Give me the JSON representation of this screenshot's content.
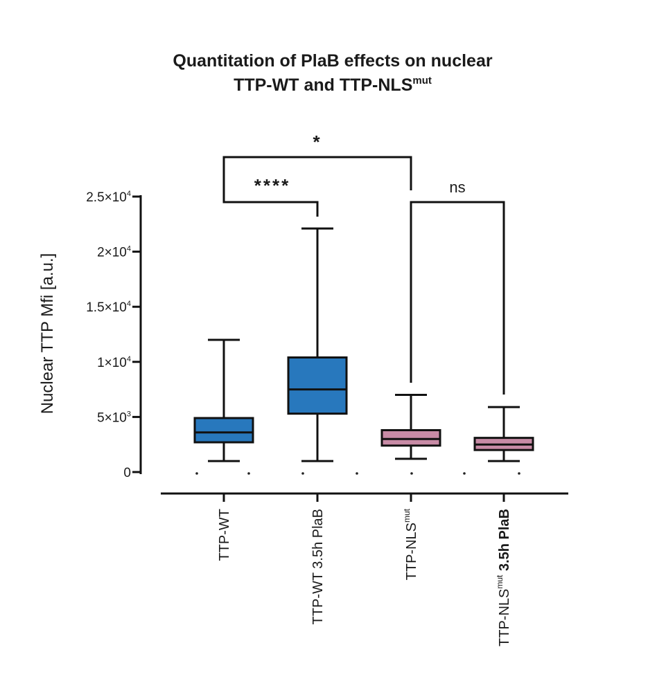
{
  "chart_data": {
    "type": "box",
    "title": {
      "line1": "Quantitation of PlaB effects on nuclear",
      "line2_prefix": "TTP-WT and TTP-NLS",
      "line2_sup": "mut"
    },
    "ylabel": "Nuclear TTP Mfi [a.u.]",
    "ylim": [
      0,
      25000
    ],
    "yticks": [
      {
        "value": 0,
        "base": "0",
        "exp": ""
      },
      {
        "value": 5000,
        "base": "5×10",
        "exp": "3"
      },
      {
        "value": 10000,
        "base": "1×10",
        "exp": "4"
      },
      {
        "value": 15000,
        "base": "1.5×10",
        "exp": "4"
      },
      {
        "value": 20000,
        "base": "2×10",
        "exp": "4"
      },
      {
        "value": 25000,
        "base": "2.5×10",
        "exp": "4"
      }
    ],
    "categories": [
      {
        "prefix": "TTP-WT",
        "sup": "",
        "suffix": "",
        "bold_suffix": false,
        "color": "#2878bd"
      },
      {
        "prefix": "TTP-WT 3.5h PlaB",
        "sup": "",
        "suffix": "",
        "bold_suffix": false,
        "color": "#2878bd"
      },
      {
        "prefix": "TTP-NLS",
        "sup": "mut",
        "suffix": "",
        "bold_suffix": false,
        "color": "#c88ba6"
      },
      {
        "prefix": "TTP-NLS",
        "sup": "mut",
        "suffix": " 3.5h PlaB",
        "bold_suffix": true,
        "color": "#c88ba6"
      }
    ],
    "boxes": [
      {
        "min": 1000,
        "q1": 2700,
        "median": 3600,
        "q3": 4900,
        "max": 12000
      },
      {
        "min": 1000,
        "q1": 5300,
        "median": 7500,
        "q3": 10400,
        "max": 22100
      },
      {
        "min": 1200,
        "q1": 2400,
        "median": 3000,
        "q3": 3800,
        "max": 7000
      },
      {
        "min": 1000,
        "q1": 2000,
        "median": 2500,
        "q3": 3100,
        "max": 5900
      }
    ],
    "significance": [
      {
        "from": 0,
        "to": 1,
        "label": "****"
      },
      {
        "from": 0,
        "to": 2,
        "label": "*"
      },
      {
        "from": 2,
        "to": 3,
        "label": "ns"
      }
    ],
    "grid": false,
    "legend": "none"
  }
}
